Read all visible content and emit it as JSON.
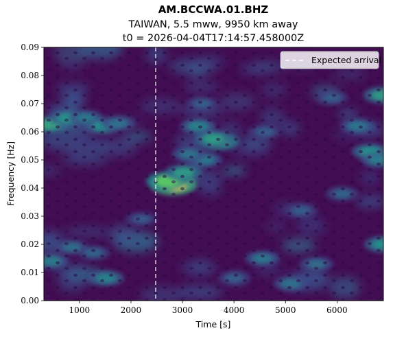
{
  "chart_data": {
    "type": "heatmap",
    "title": "AM.BCCWA.01.BHZ",
    "subtitle_lines": [
      "TAIWAN, 5.5 mww, 9950 km away",
      "t0 = 2026-04-04T17:14:57.458000Z"
    ],
    "xlabel": "Time [s]",
    "ylabel": "Frequency [Hz]",
    "xlim": [
      310,
      6900
    ],
    "ylim": [
      0.0,
      0.09
    ],
    "x_ticks": [
      1000,
      2000,
      3000,
      4000,
      5000,
      6000
    ],
    "x_tick_labels": [
      "1000",
      "2000",
      "3000",
      "4000",
      "5000",
      "6000"
    ],
    "y_ticks": [
      0.0,
      0.01,
      0.02,
      0.03,
      0.04,
      0.05,
      0.06,
      0.07,
      0.08,
      0.09
    ],
    "y_tick_labels": [
      "0.00",
      "0.01",
      "0.02",
      "0.03",
      "0.04",
      "0.05",
      "0.06",
      "0.07",
      "0.08",
      "0.09"
    ],
    "colormap": "viridis",
    "expected_arrival": {
      "time": 2480,
      "legend_label": "Expected arrival",
      "color": "#ffffff"
    },
    "legend_placement": "top-right",
    "hotspots": [
      {
        "t": 2820,
        "f": 0.0412,
        "level": 1.0
      },
      {
        "t": 2700,
        "f": 0.0425,
        "level": 0.75
      },
      {
        "t": 3020,
        "f": 0.0455,
        "level": 0.55
      },
      {
        "t": 3720,
        "f": 0.0565,
        "level": 0.65
      },
      {
        "t": 3600,
        "f": 0.0575,
        "level": 0.55
      },
      {
        "t": 3300,
        "f": 0.062,
        "level": 0.45
      },
      {
        "t": 3440,
        "f": 0.05,
        "level": 0.4
      },
      {
        "t": 3120,
        "f": 0.052,
        "level": 0.38
      },
      {
        "t": 420,
        "f": 0.0625,
        "level": 0.58
      },
      {
        "t": 780,
        "f": 0.0648,
        "level": 0.52
      },
      {
        "t": 1130,
        "f": 0.065,
        "level": 0.4
      },
      {
        "t": 1460,
        "f": 0.062,
        "level": 0.5
      },
      {
        "t": 1750,
        "f": 0.063,
        "level": 0.38
      },
      {
        "t": 6880,
        "f": 0.073,
        "level": 0.55
      },
      {
        "t": 6640,
        "f": 0.053,
        "level": 0.5
      },
      {
        "t": 6800,
        "f": 0.05,
        "level": 0.42
      },
      {
        "t": 6400,
        "f": 0.062,
        "level": 0.4
      },
      {
        "t": 6880,
        "f": 0.02,
        "level": 0.5
      },
      {
        "t": 450,
        "f": 0.014,
        "level": 0.42
      },
      {
        "t": 850,
        "f": 0.019,
        "level": 0.36
      },
      {
        "t": 1520,
        "f": 0.008,
        "level": 0.45
      },
      {
        "t": 1280,
        "f": 0.017,
        "level": 0.32
      },
      {
        "t": 4550,
        "f": 0.015,
        "level": 0.4
      },
      {
        "t": 5100,
        "f": 0.006,
        "level": 0.38
      },
      {
        "t": 5600,
        "f": 0.013,
        "level": 0.36
      },
      {
        "t": 3380,
        "f": 0.07,
        "level": 0.3
      },
      {
        "t": 4600,
        "f": 0.06,
        "level": 0.3
      },
      {
        "t": 5300,
        "f": 0.032,
        "level": 0.3
      },
      {
        "t": 6100,
        "f": 0.038,
        "level": 0.32
      },
      {
        "t": 2200,
        "f": 0.029,
        "level": 0.28
      },
      {
        "t": 4000,
        "f": 0.008,
        "level": 0.3
      },
      {
        "t": 5900,
        "f": 0.072,
        "level": 0.3
      }
    ]
  }
}
